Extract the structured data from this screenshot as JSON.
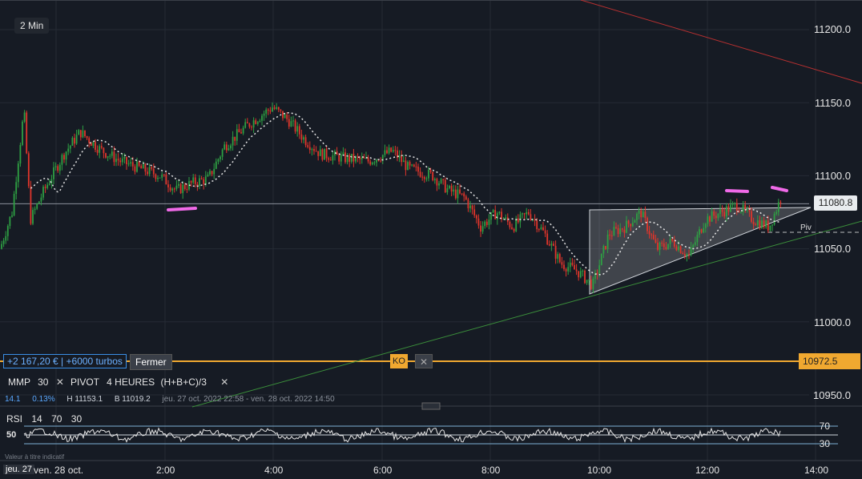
{
  "timeframe": "2 Min",
  "position": {
    "pnl": "+2 167,20 € | +6000 turbos",
    "close_label": "Fermer"
  },
  "ko": {
    "label": "KO",
    "close": "✕",
    "level": "10972.5"
  },
  "last_price": "11080.8",
  "piv_label": "Piv",
  "indicators": {
    "mmp": {
      "label": "MMP",
      "period": "30",
      "close": "✕"
    },
    "pivot": {
      "label": "PIVOT",
      "value": "4 HEURES",
      "formula": "(H+B+C)/3",
      "close": "✕"
    }
  },
  "stats": {
    "change": "14.1",
    "pct": "0.13%",
    "high": "H 11153.1",
    "low": "B 11019.2",
    "range": "jeu. 27 oct. 2022 22:58 - ven. 28 oct. 2022 14:50"
  },
  "rsi": {
    "label": "RSI",
    "p1": "14",
    "p2": "70",
    "p3": "30",
    "left_level": "50",
    "levels": [
      "70",
      "50",
      "30"
    ]
  },
  "footnote": "Valeur à titre indicatif",
  "date_badge": "jeu. 27",
  "chart_data": {
    "type": "line",
    "y_ticks": [
      "11200.0",
      "11150.0",
      "11100.0",
      "11050.0",
      "11000.0",
      "10950.0"
    ],
    "x_ticks": [
      "ven. 28 oct.",
      "2:00",
      "4:00",
      "6:00",
      "8:00",
      "10:00",
      "12:00",
      "14:00"
    ],
    "ylim": [
      10935,
      11220
    ],
    "price_path": [
      [
        0,
        11050
      ],
      [
        15,
        11075
      ],
      [
        30,
        11145
      ],
      [
        38,
        11070
      ],
      [
        55,
        11090
      ],
      [
        80,
        11115
      ],
      [
        100,
        11130
      ],
      [
        125,
        11118
      ],
      [
        150,
        11110
      ],
      [
        175,
        11105
      ],
      [
        200,
        11100
      ],
      [
        220,
        11090
      ],
      [
        240,
        11095
      ],
      [
        260,
        11098
      ],
      [
        280,
        11120
      ],
      [
        310,
        11135
      ],
      [
        340,
        11147
      ],
      [
        360,
        11138
      ],
      [
        380,
        11125
      ],
      [
        400,
        11115
      ],
      [
        430,
        11112
      ],
      [
        460,
        11110
      ],
      [
        490,
        11117
      ],
      [
        510,
        11105
      ],
      [
        540,
        11100
      ],
      [
        560,
        11090
      ],
      [
        580,
        11085
      ],
      [
        600,
        11065
      ],
      [
        620,
        11075
      ],
      [
        640,
        11065
      ],
      [
        660,
        11075
      ],
      [
        680,
        11060
      ],
      [
        700,
        11040
      ],
      [
        720,
        11035
      ],
      [
        740,
        11025
      ],
      [
        760,
        11060
      ],
      [
        780,
        11065
      ],
      [
        800,
        11075
      ],
      [
        820,
        11050
      ],
      [
        840,
        11055
      ],
      [
        860,
        11045
      ],
      [
        880,
        11070
      ],
      [
        900,
        11075
      ],
      [
        920,
        11080
      ],
      [
        940,
        11070
      ],
      [
        960,
        11065
      ],
      [
        975,
        11085
      ]
    ],
    "ma_period": 30,
    "colors": {
      "up": "#2ea043",
      "down": "#e0352b",
      "ma": "#e6e6e6",
      "ko": "#f0a830",
      "highlight": "#f06ae8"
    }
  }
}
